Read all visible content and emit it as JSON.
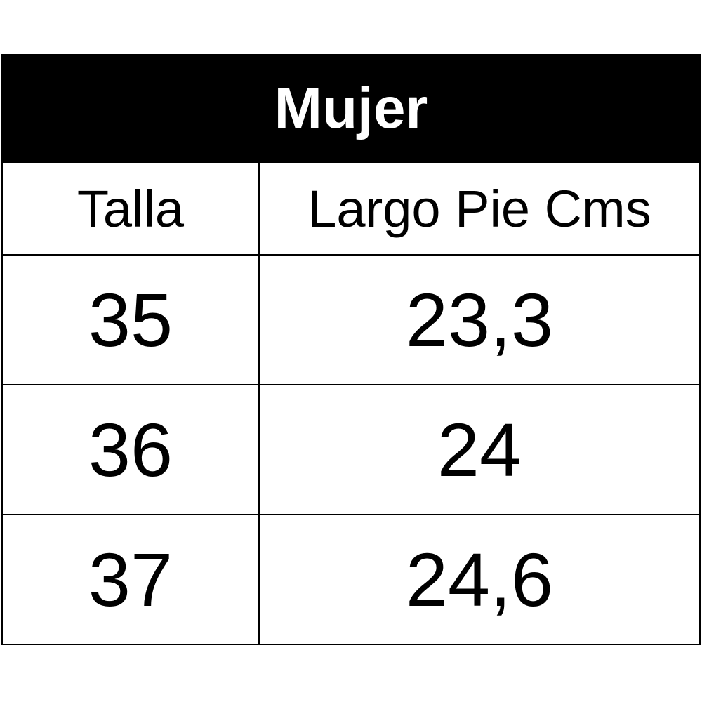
{
  "table": {
    "title": "Mujer",
    "header": [
      "Talla",
      "Largo Pie Cms"
    ],
    "rows": [
      [
        "35",
        "23,3"
      ],
      [
        "36",
        "24"
      ],
      [
        "37",
        "24,6"
      ]
    ]
  }
}
